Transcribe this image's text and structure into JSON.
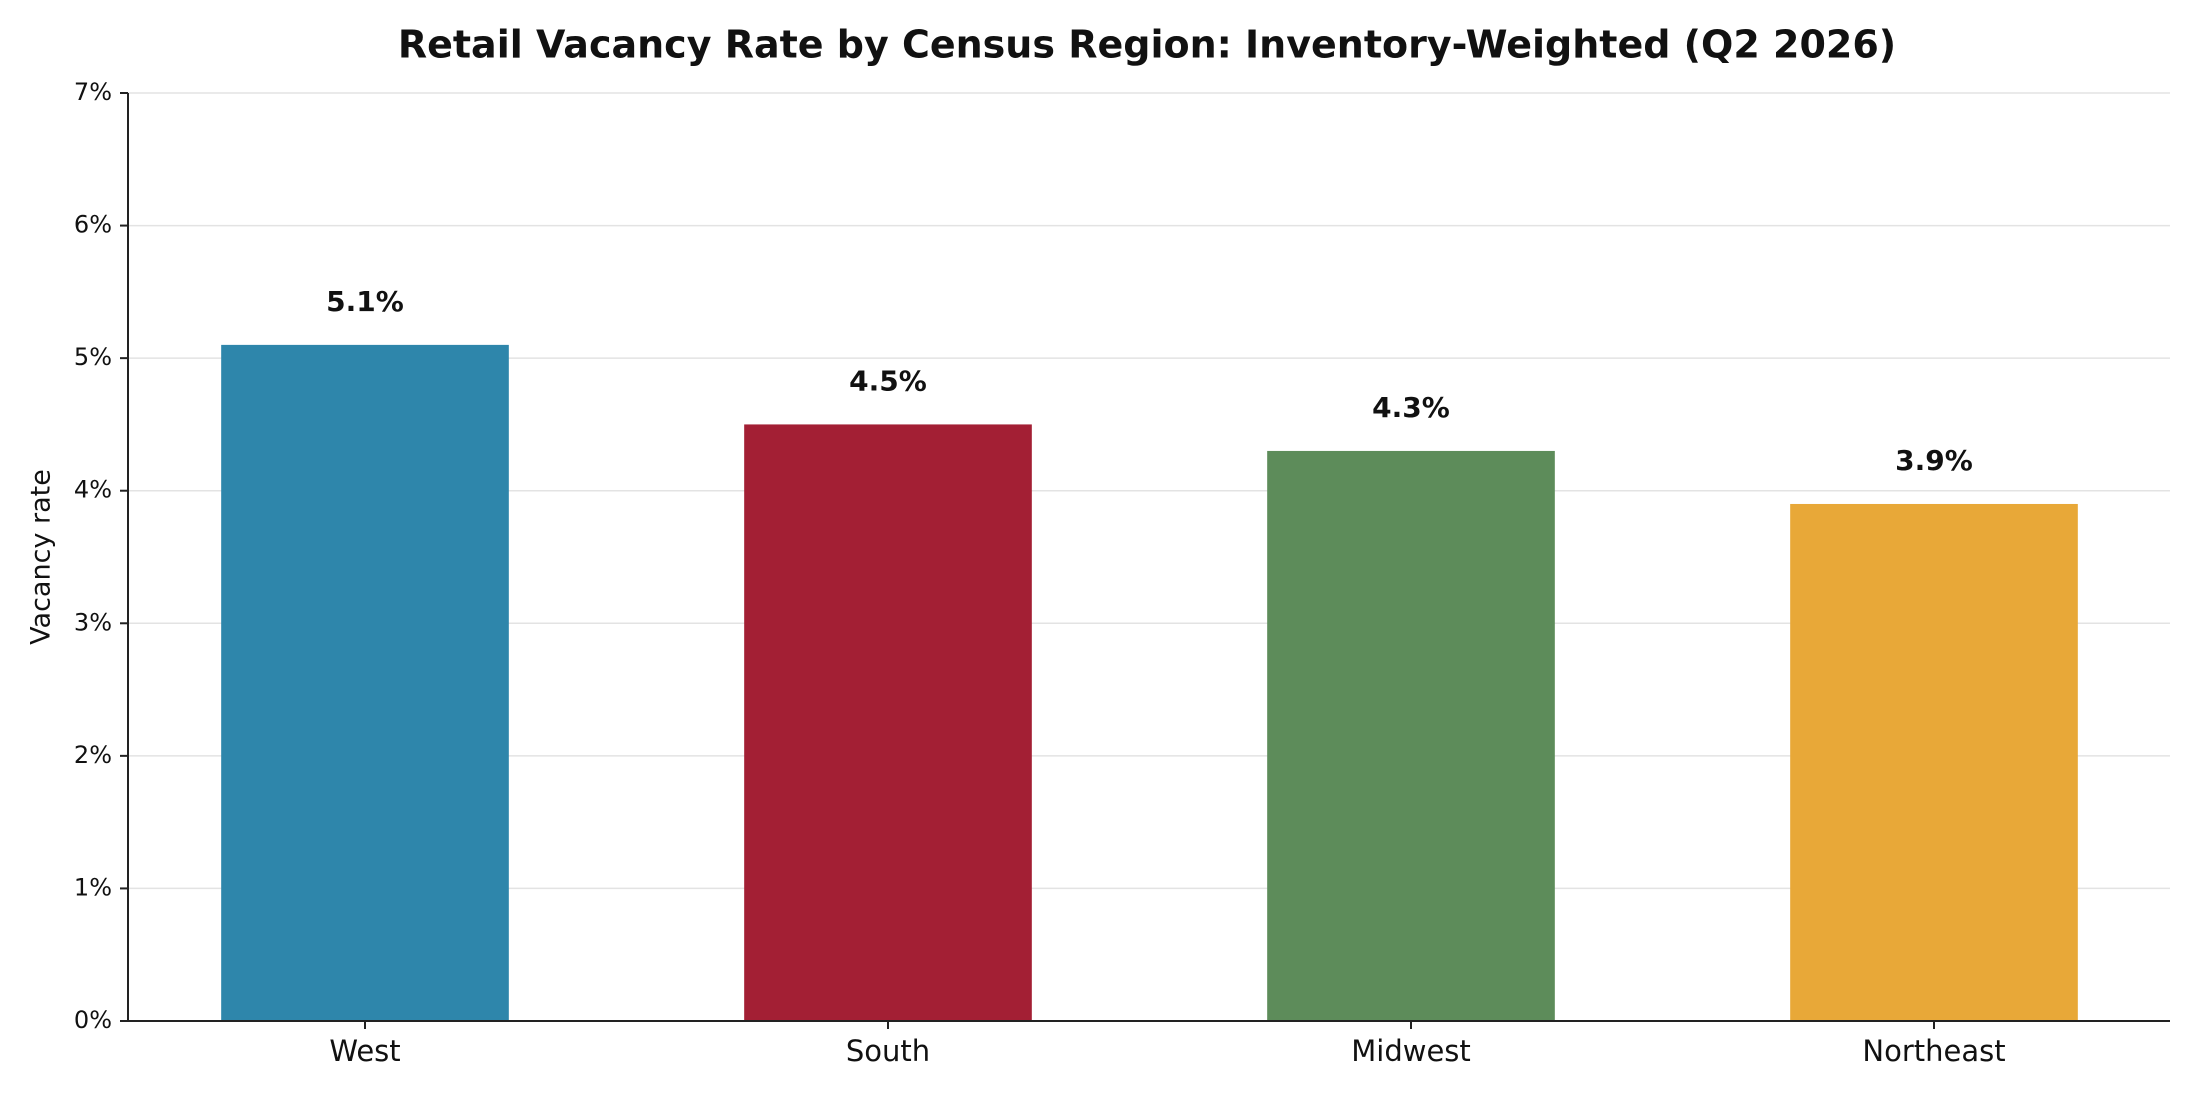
{
  "chart_data": {
    "type": "bar",
    "title": "Retail Vacancy Rate by Census Region: Inventory-Weighted (Q2 2026)",
    "y_label": "Vacancy rate",
    "categories": [
      "West",
      "South",
      "Midwest",
      "Northeast"
    ],
    "values": [
      5.1,
      4.5,
      4.3,
      3.9
    ],
    "value_labels": [
      "5.1%",
      "4.5%",
      "4.3%",
      "3.9%"
    ],
    "colors": [
      "#2e86ab",
      "#a31f34",
      "#5d8c5a",
      "#e8a838"
    ],
    "ylim": [
      0,
      7
    ],
    "yticks": [
      {
        "value": 0,
        "label": "0%"
      },
      {
        "value": 1,
        "label": "1%"
      },
      {
        "value": 2,
        "label": "2%"
      },
      {
        "value": 3,
        "label": "3%"
      },
      {
        "value": 4,
        "label": "4%"
      },
      {
        "value": 5,
        "label": "5%"
      },
      {
        "value": 6,
        "label": "6%"
      },
      {
        "value": 7,
        "label": "7%"
      }
    ],
    "grid": true
  }
}
